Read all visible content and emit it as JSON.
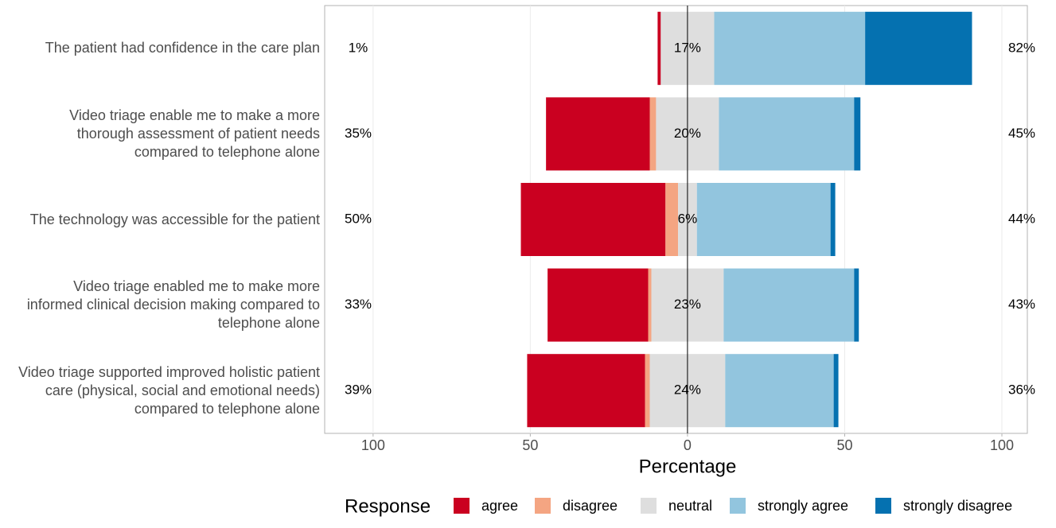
{
  "chart_data": {
    "type": "diverging-bar",
    "categories": [
      "The patient had confidence in the care plan",
      "Video triage enable me to make a more thorough assessment of patient needs compared to telephone alone",
      "The technology was accessible for the patient",
      "Video triage enabled me to make more informed clinical decision making compared to telephone alone",
      "Video triage supported improved holistic patient care (physical, social and emotional needs) compared to telephone alone"
    ],
    "series": [
      {
        "name": "agree",
        "color": "#ca0020",
        "values": [
          1,
          33,
          46,
          32,
          37.5
        ]
      },
      {
        "name": "disagree",
        "color": "#f4a582",
        "values": [
          0,
          2,
          4,
          1,
          1.5
        ]
      },
      {
        "name": "neutral",
        "color": "#dedede",
        "values": [
          17,
          20,
          6,
          23,
          24
        ],
        "value_labels": [
          "17%",
          "20%",
          "6%",
          "23%",
          "24%"
        ]
      },
      {
        "name": "strongly agree",
        "color": "#92c5de",
        "values": [
          48,
          43,
          42.5,
          41.5,
          34.5
        ]
      },
      {
        "name": "strongly disagree",
        "color": "#0571b0",
        "values": [
          34,
          2,
          1.5,
          1.5,
          1.5
        ]
      }
    ],
    "left_labels": [
      "1%",
      "35%",
      "50%",
      "33%",
      "39%"
    ],
    "right_labels": [
      "82%",
      "45%",
      "44%",
      "43%",
      "36%"
    ],
    "xlabel": "Percentage",
    "legend_title": "Response",
    "xlim": [
      -115.4,
      108.1
    ],
    "xticks": [
      {
        "value": -100,
        "label": "100"
      },
      {
        "value": -50,
        "label": "50"
      },
      0,
      50,
      100
    ],
    "grid": true
  }
}
